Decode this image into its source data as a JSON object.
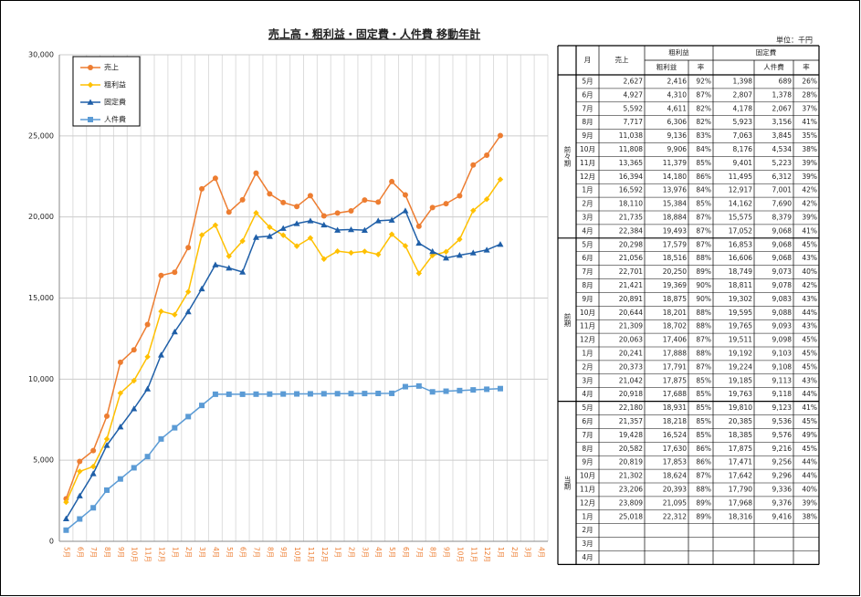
{
  "chart_data": {
    "type": "line",
    "title": "売上高・粗利益・固定費・人件費 移動年計",
    "categories": [
      "5月",
      "6月",
      "7月",
      "8月",
      "9月",
      "10月",
      "11月",
      "12月",
      "1月",
      "2月",
      "3月",
      "4月",
      "5月",
      "6月",
      "7月",
      "8月",
      "9月",
      "10月",
      "11月",
      "12月",
      "1月",
      "2月",
      "3月",
      "4月",
      "5月",
      "6月",
      "7月",
      "8月",
      "9月",
      "10月",
      "11月",
      "12月",
      "1月",
      "2月",
      "3月",
      "4月"
    ],
    "ylim": [
      0,
      30000
    ],
    "yticks": [
      0,
      {
        "value": 5000,
        "label": "5,000"
      },
      {
        "value": 10000,
        "label": "10,000"
      },
      {
        "value": 15000,
        "label": "15,000"
      },
      {
        "value": 20000,
        "label": "20,000"
      },
      {
        "value": 25000,
        "label": "25,000"
      },
      {
        "value": 30000,
        "label": "30,000"
      }
    ],
    "grid": true,
    "legend": "upper left",
    "series": [
      {
        "name": "売上",
        "color": "#ed7d31",
        "marker": "circle",
        "values": [
          2627,
          4927,
          5592,
          7717,
          11038,
          11808,
          13365,
          16394,
          16592,
          18110,
          21735,
          22384,
          20298,
          21056,
          22701,
          21421,
          20891,
          20644,
          21309,
          20063,
          20241,
          20373,
          21042,
          20918,
          22180,
          21357,
          19428,
          20582,
          20819,
          21302,
          23206,
          23809,
          25018,
          null,
          null,
          null
        ]
      },
      {
        "name": "粗利益",
        "color": "#ffc000",
        "marker": "diamond",
        "values": [
          2416,
          4310,
          4611,
          6306,
          9136,
          9906,
          11379,
          14180,
          13976,
          15384,
          18884,
          19493,
          17579,
          18516,
          20250,
          19369,
          18875,
          18201,
          18702,
          17406,
          17888,
          17791,
          17875,
          17688,
          18931,
          18218,
          16524,
          17630,
          17853,
          18624,
          20393,
          21095,
          22312,
          null,
          null,
          null
        ]
      },
      {
        "name": "固定費",
        "color": "#1f5fa8",
        "marker": "triangle",
        "values": [
          1398,
          2807,
          4178,
          5923,
          7063,
          8176,
          9401,
          11495,
          12917,
          14162,
          15575,
          17052,
          16853,
          16606,
          18749,
          18811,
          19302,
          19595,
          19765,
          19511,
          19192,
          19224,
          19185,
          19763,
          19810,
          20385,
          18385,
          17875,
          17471,
          17642,
          17790,
          17968,
          18316,
          null,
          null,
          null
        ]
      },
      {
        "name": "人件費",
        "color": "#5b9bd5",
        "marker": "square",
        "values": [
          689,
          1378,
          2067,
          3156,
          3845,
          4534,
          5223,
          6312,
          7001,
          7690,
          8379,
          9068,
          9068,
          9068,
          9073,
          9078,
          9083,
          9088,
          9093,
          9098,
          9103,
          9108,
          9113,
          9118,
          9123,
          9536,
          9576,
          9216,
          9256,
          9296,
          9336,
          9376,
          9416,
          null,
          null,
          null
        ]
      }
    ]
  },
  "table": {
    "unit": "単位：千円",
    "header": {
      "month": "月",
      "sales": "売上",
      "gross": "粗利益",
      "gross_sub": "粗利益",
      "rate": "率",
      "fixed": "固定費",
      "personnel": "人件費",
      "rate2": "率"
    },
    "groups": [
      {
        "label": "前々期",
        "rows": [
          [
            "5月",
            "2,627",
            "2,416",
            "92%",
            "1,398",
            "689",
            "26%"
          ],
          [
            "6月",
            "4,927",
            "4,310",
            "87%",
            "2,807",
            "1,378",
            "28%"
          ],
          [
            "7月",
            "5,592",
            "4,611",
            "82%",
            "4,178",
            "2,067",
            "37%"
          ],
          [
            "8月",
            "7,717",
            "6,306",
            "82%",
            "5,923",
            "3,156",
            "41%"
          ],
          [
            "9月",
            "11,038",
            "9,136",
            "83%",
            "7,063",
            "3,845",
            "35%"
          ],
          [
            "10月",
            "11,808",
            "9,906",
            "84%",
            "8,176",
            "4,534",
            "38%"
          ],
          [
            "11月",
            "13,365",
            "11,379",
            "85%",
            "9,401",
            "5,223",
            "39%"
          ],
          [
            "12月",
            "16,394",
            "14,180",
            "86%",
            "11,495",
            "6,312",
            "39%"
          ],
          [
            "1月",
            "16,592",
            "13,976",
            "84%",
            "12,917",
            "7,001",
            "42%"
          ],
          [
            "2月",
            "18,110",
            "15,384",
            "85%",
            "14,162",
            "7,690",
            "42%"
          ],
          [
            "3月",
            "21,735",
            "18,884",
            "87%",
            "15,575",
            "8,379",
            "39%"
          ],
          [
            "4月",
            "22,384",
            "19,493",
            "87%",
            "17,052",
            "9,068",
            "41%"
          ]
        ]
      },
      {
        "label": "前期",
        "rows": [
          [
            "5月",
            "20,298",
            "17,579",
            "87%",
            "16,853",
            "9,068",
            "45%"
          ],
          [
            "6月",
            "21,056",
            "18,516",
            "88%",
            "16,606",
            "9,068",
            "43%"
          ],
          [
            "7月",
            "22,701",
            "20,250",
            "89%",
            "18,749",
            "9,073",
            "40%"
          ],
          [
            "8月",
            "21,421",
            "19,369",
            "90%",
            "18,811",
            "9,078",
            "42%"
          ],
          [
            "9月",
            "20,891",
            "18,875",
            "90%",
            "19,302",
            "9,083",
            "43%"
          ],
          [
            "10月",
            "20,644",
            "18,201",
            "88%",
            "19,595",
            "9,088",
            "44%"
          ],
          [
            "11月",
            "21,309",
            "18,702",
            "88%",
            "19,765",
            "9,093",
            "43%"
          ],
          [
            "12月",
            "20,063",
            "17,406",
            "87%",
            "19,511",
            "9,098",
            "45%"
          ],
          [
            "1月",
            "20,241",
            "17,888",
            "88%",
            "19,192",
            "9,103",
            "45%"
          ],
          [
            "2月",
            "20,373",
            "17,791",
            "87%",
            "19,224",
            "9,108",
            "45%"
          ],
          [
            "3月",
            "21,042",
            "17,875",
            "85%",
            "19,185",
            "9,113",
            "43%"
          ],
          [
            "4月",
            "20,918",
            "17,688",
            "85%",
            "19,763",
            "9,118",
            "44%"
          ]
        ]
      },
      {
        "label": "当期",
        "rows": [
          [
            "5月",
            "22,180",
            "18,931",
            "85%",
            "19,810",
            "9,123",
            "41%"
          ],
          [
            "6月",
            "21,357",
            "18,218",
            "85%",
            "20,385",
            "9,536",
            "45%"
          ],
          [
            "7月",
            "19,428",
            "16,524",
            "85%",
            "18,385",
            "9,576",
            "49%"
          ],
          [
            "8月",
            "20,582",
            "17,630",
            "86%",
            "17,875",
            "9,216",
            "45%"
          ],
          [
            "9月",
            "20,819",
            "17,853",
            "86%",
            "17,471",
            "9,256",
            "44%"
          ],
          [
            "10月",
            "21,302",
            "18,624",
            "87%",
            "17,642",
            "9,296",
            "44%"
          ],
          [
            "11月",
            "23,206",
            "20,393",
            "88%",
            "17,790",
            "9,336",
            "40%"
          ],
          [
            "12月",
            "23,809",
            "21,095",
            "89%",
            "17,968",
            "9,376",
            "39%"
          ],
          [
            "1月",
            "25,018",
            "22,312",
            "89%",
            "18,316",
            "9,416",
            "38%"
          ],
          [
            "2月"
          ],
          [
            "3月"
          ],
          [
            "4月"
          ]
        ]
      }
    ]
  }
}
